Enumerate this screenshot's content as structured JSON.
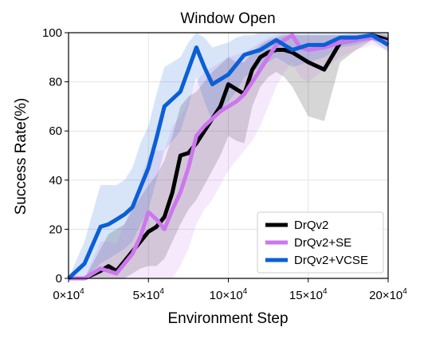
{
  "chart_data": {
    "type": "line",
    "title": "Window Open",
    "xlabel": "Environment Step",
    "ylabel": "Success Rate(%)",
    "xlim": [
      0,
      200000
    ],
    "ylim": [
      0,
      100
    ],
    "x_ticks": [
      {
        "value": 0,
        "mant": "0",
        "exp": "4"
      },
      {
        "value": 50000,
        "mant": "5",
        "exp": "4"
      },
      {
        "value": 100000,
        "mant": "10",
        "exp": "4"
      },
      {
        "value": 150000,
        "mant": "15",
        "exp": "4"
      },
      {
        "value": 200000,
        "mant": "20",
        "exp": "4"
      }
    ],
    "x_tick_times": "×10",
    "y_ticks": [
      0,
      20,
      40,
      60,
      80,
      100
    ],
    "grid": true,
    "legend_position": "bottom-right",
    "series": [
      {
        "name": "DrQv2",
        "color": "#000000",
        "x": [
          0,
          10000,
          20000,
          25000,
          30000,
          35000,
          40000,
          45000,
          50000,
          55000,
          60000,
          65000,
          70000,
          75000,
          80000,
          85000,
          90000,
          95000,
          100000,
          105000,
          110000,
          115000,
          120000,
          125000,
          130000,
          135000,
          140000,
          145000,
          150000,
          160000,
          170000,
          180000,
          190000,
          200000
        ],
        "values": [
          0,
          0,
          3,
          5,
          3,
          7,
          11,
          15,
          19,
          21,
          25,
          35,
          50,
          51,
          55,
          60,
          65,
          70,
          79,
          77,
          75,
          85,
          90,
          92,
          93,
          93,
          92,
          90,
          88,
          85,
          96,
          97,
          99,
          97
        ],
        "lower": [
          0,
          0,
          0,
          0,
          0,
          0,
          2,
          4,
          5,
          5,
          8,
          15,
          22,
          28,
          32,
          38,
          44,
          50,
          58,
          56,
          55,
          70,
          78,
          82,
          84,
          82,
          78,
          72,
          66,
          64,
          88,
          93,
          97,
          95
        ],
        "upper": [
          0,
          0,
          12,
          18,
          20,
          22,
          28,
          33,
          38,
          42,
          48,
          58,
          70,
          74,
          76,
          80,
          84,
          87,
          90,
          88,
          88,
          92,
          95,
          97,
          98,
          99,
          99,
          99,
          99,
          99,
          99,
          99,
          100,
          100
        ]
      },
      {
        "name": "DrQv2+SE",
        "color": "#cc77ee",
        "x": [
          0,
          10000,
          20000,
          25000,
          30000,
          35000,
          40000,
          45000,
          50000,
          55000,
          60000,
          65000,
          70000,
          75000,
          80000,
          85000,
          90000,
          95000,
          100000,
          105000,
          110000,
          115000,
          120000,
          125000,
          130000,
          135000,
          140000,
          145000,
          150000,
          160000,
          170000,
          180000,
          190000,
          200000
        ],
        "values": [
          0,
          0,
          4,
          3,
          2,
          6,
          10,
          17,
          27,
          24,
          20,
          28,
          35,
          45,
          58,
          62,
          65,
          68,
          70,
          72,
          75,
          80,
          85,
          90,
          95,
          97,
          99,
          94,
          93,
          94,
          96,
          97,
          98,
          96
        ],
        "lower": [
          0,
          0,
          0,
          0,
          0,
          0,
          0,
          0,
          0,
          0,
          0,
          0,
          5,
          12,
          22,
          28,
          32,
          38,
          44,
          48,
          52,
          56,
          62,
          70,
          78,
          84,
          88,
          82,
          80,
          85,
          90,
          93,
          95,
          93
        ],
        "upper": [
          0,
          0,
          15,
          15,
          14,
          22,
          30,
          40,
          50,
          52,
          52,
          62,
          66,
          72,
          80,
          84,
          86,
          88,
          90,
          91,
          92,
          94,
          96,
          98,
          99,
          100,
          100,
          99,
          99,
          99,
          99,
          100,
          100,
          99
        ]
      },
      {
        "name": "DrQv2+VCSE",
        "color": "#0a5fd6",
        "x": [
          0,
          10000,
          20000,
          25000,
          30000,
          35000,
          40000,
          45000,
          50000,
          55000,
          60000,
          65000,
          70000,
          75000,
          80000,
          85000,
          90000,
          95000,
          100000,
          105000,
          110000,
          115000,
          120000,
          125000,
          130000,
          135000,
          140000,
          145000,
          150000,
          160000,
          170000,
          180000,
          190000,
          200000
        ],
        "values": [
          0,
          6,
          21,
          22,
          24,
          26,
          29,
          37,
          45,
          57,
          70,
          73,
          76,
          85,
          94,
          86,
          79,
          81,
          83,
          87,
          91,
          92,
          93,
          95,
          97,
          95,
          93,
          94,
          95,
          95,
          98,
          98,
          99,
          95
        ],
        "lower": [
          0,
          0,
          6,
          8,
          10,
          12,
          15,
          22,
          28,
          40,
          52,
          56,
          60,
          70,
          82,
          72,
          64,
          68,
          72,
          76,
          82,
          84,
          86,
          88,
          90,
          88,
          86,
          87,
          88,
          90,
          94,
          95,
          97,
          92
        ],
        "upper": [
          0,
          15,
          38,
          38,
          38,
          40,
          45,
          55,
          62,
          75,
          86,
          88,
          90,
          96,
          100,
          98,
          94,
          95,
          96,
          98,
          99,
          99,
          100,
          100,
          100,
          100,
          100,
          100,
          100,
          100,
          100,
          100,
          100,
          99
        ]
      }
    ]
  }
}
